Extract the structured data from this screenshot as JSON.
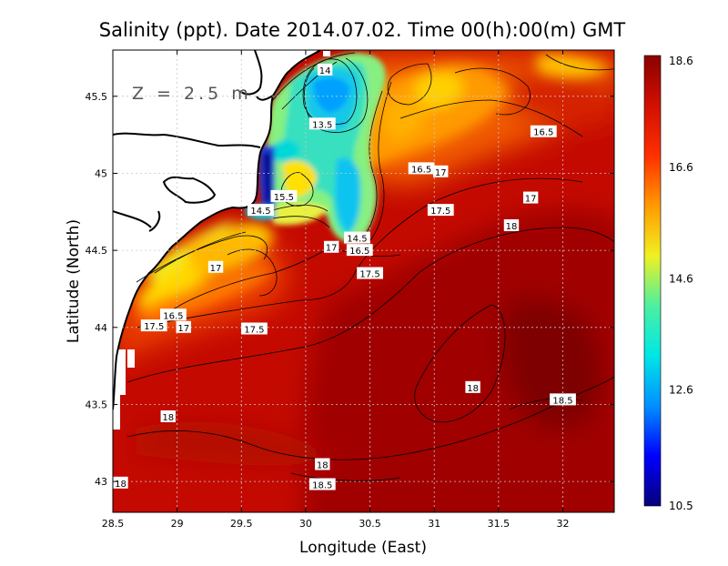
{
  "title": "Salinity (ppt). Date 2014.07.02. Time 00(h):00(m) GMT",
  "depth_label": "Z = 2.5 m",
  "axes": {
    "xlabel": "Longitude (East)",
    "ylabel": "Latitude (North)",
    "x_ticks": [
      "28.5",
      "29",
      "29.5",
      "30",
      "30.5",
      "31",
      "31.5",
      "32"
    ],
    "y_ticks": [
      "45.5",
      "45",
      "44.5",
      "44",
      "43.5",
      "43"
    ]
  },
  "colorbar": {
    "ticks": [
      "18.6",
      "16.6",
      "14.6",
      "12.6",
      "10.5"
    ],
    "min": 10.5,
    "max": 18.6,
    "colors": [
      "#08007a",
      "#0000ff",
      "#0090ff",
      "#00e6e6",
      "#4cf0a0",
      "#f0f022",
      "#ff9a00",
      "#ff3000",
      "#d01000",
      "#8b0000"
    ]
  },
  "map_colors": {
    "land": "#ffffff",
    "coastline": "#000000",
    "grid": "#bbbbbb"
  },
  "contour_labels": [
    {
      "text": "14",
      "lon": 30.15,
      "lat": 45.67
    },
    {
      "text": "13.5",
      "lon": 30.13,
      "lat": 45.32
    },
    {
      "text": "16.5",
      "lon": 31.85,
      "lat": 45.27
    },
    {
      "text": "16.5",
      "lon": 30.9,
      "lat": 45.03
    },
    {
      "text": "17",
      "lon": 31.05,
      "lat": 45.01
    },
    {
      "text": "17",
      "lon": 31.75,
      "lat": 44.84
    },
    {
      "text": "15.5",
      "lon": 29.83,
      "lat": 44.85
    },
    {
      "text": "14.5",
      "lon": 29.65,
      "lat": 44.76
    },
    {
      "text": "17.5",
      "lon": 31.05,
      "lat": 44.76
    },
    {
      "text": "18",
      "lon": 31.6,
      "lat": 44.66
    },
    {
      "text": "14.5",
      "lon": 30.4,
      "lat": 44.58
    },
    {
      "text": "17",
      "lon": 30.2,
      "lat": 44.52
    },
    {
      "text": "16.5",
      "lon": 30.42,
      "lat": 44.5
    },
    {
      "text": "17",
      "lon": 29.3,
      "lat": 44.39
    },
    {
      "text": "17.5",
      "lon": 30.5,
      "lat": 44.35
    },
    {
      "text": "16.5",
      "lon": 28.97,
      "lat": 44.08
    },
    {
      "text": "17.5",
      "lon": 28.82,
      "lat": 44.01
    },
    {
      "text": "17",
      "lon": 29.05,
      "lat": 44.0
    },
    {
      "text": "17.5",
      "lon": 29.6,
      "lat": 43.99
    },
    {
      "text": "18",
      "lon": 31.3,
      "lat": 43.61
    },
    {
      "text": "18.5",
      "lon": 32.0,
      "lat": 43.53
    },
    {
      "text": "18",
      "lon": 28.93,
      "lat": 43.42
    },
    {
      "text": "18",
      "lon": 30.13,
      "lat": 43.11
    },
    {
      "text": "18",
      "lon": 28.56,
      "lat": 42.99
    },
    {
      "text": "18.5",
      "lon": 30.13,
      "lat": 42.98
    }
  ]
}
